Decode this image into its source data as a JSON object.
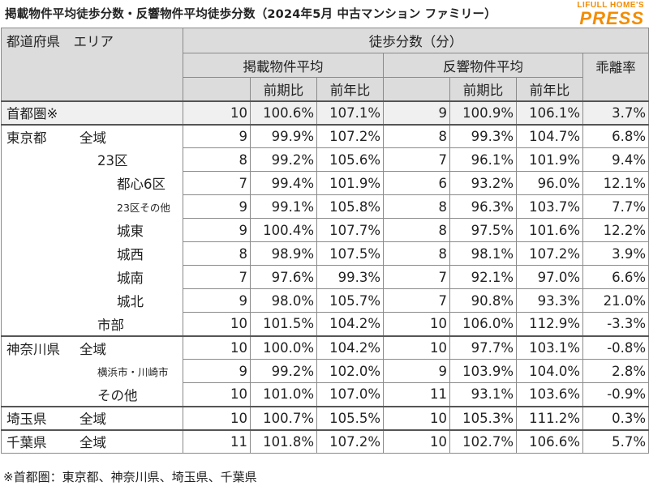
{
  "title": "掲載物件平均徒歩分数・反響物件平均徒歩分数（2024年5月 中古マンション ファミリー）",
  "logo": {
    "top": "LIFULL HOME'S",
    "main": "PRESS",
    "color": "#f28c00"
  },
  "header": {
    "region": "都道府県　エリア",
    "walk_minutes": "徒歩分数（分）",
    "listed": "掲載物件平均",
    "response": "反響物件平均",
    "divergence": "乖離率",
    "mom": "前期比",
    "yoy": "前年比"
  },
  "rows": [
    {
      "pref": "首都圏※",
      "area": "",
      "l_min": "10",
      "l_mom": "100.6%",
      "l_yoy": "107.1%",
      "r_min": "9",
      "r_mom": "100.9%",
      "r_yoy": "106.1%",
      "div": "3.7%"
    },
    {
      "pref": "東京都",
      "area": "全域",
      "l_min": "9",
      "l_mom": "99.9%",
      "l_yoy": "107.2%",
      "r_min": "8",
      "r_mom": "99.3%",
      "r_yoy": "104.7%",
      "div": "6.8%"
    },
    {
      "pref": "",
      "area": "23区",
      "l_min": "8",
      "l_mom": "99.2%",
      "l_yoy": "105.6%",
      "r_min": "7",
      "r_mom": "96.1%",
      "r_yoy": "101.9%",
      "div": "9.4%"
    },
    {
      "pref": "",
      "area": "都心6区",
      "l_min": "7",
      "l_mom": "99.4%",
      "l_yoy": "101.9%",
      "r_min": "6",
      "r_mom": "93.2%",
      "r_yoy": "96.0%",
      "div": "12.1%"
    },
    {
      "pref": "",
      "area": "23区その他",
      "l_min": "9",
      "l_mom": "99.1%",
      "l_yoy": "105.8%",
      "r_min": "8",
      "r_mom": "96.3%",
      "r_yoy": "103.7%",
      "div": "7.7%"
    },
    {
      "pref": "",
      "area": "城東",
      "l_min": "9",
      "l_mom": "100.4%",
      "l_yoy": "107.7%",
      "r_min": "8",
      "r_mom": "97.5%",
      "r_yoy": "101.6%",
      "div": "12.2%"
    },
    {
      "pref": "",
      "area": "城西",
      "l_min": "8",
      "l_mom": "98.9%",
      "l_yoy": "107.5%",
      "r_min": "8",
      "r_mom": "98.1%",
      "r_yoy": "107.2%",
      "div": "3.9%"
    },
    {
      "pref": "",
      "area": "城南",
      "l_min": "7",
      "l_mom": "97.6%",
      "l_yoy": "99.3%",
      "r_min": "7",
      "r_mom": "92.1%",
      "r_yoy": "97.0%",
      "div": "6.6%"
    },
    {
      "pref": "",
      "area": "城北",
      "l_min": "9",
      "l_mom": "98.0%",
      "l_yoy": "105.7%",
      "r_min": "7",
      "r_mom": "90.8%",
      "r_yoy": "93.3%",
      "div": "21.0%"
    },
    {
      "pref": "",
      "area": "市部",
      "l_min": "10",
      "l_mom": "101.5%",
      "l_yoy": "104.2%",
      "r_min": "10",
      "r_mom": "106.0%",
      "r_yoy": "112.9%",
      "div": "-3.3%"
    },
    {
      "pref": "神奈川県",
      "area": "全域",
      "l_min": "10",
      "l_mom": "100.0%",
      "l_yoy": "104.2%",
      "r_min": "10",
      "r_mom": "97.7%",
      "r_yoy": "103.1%",
      "div": "-0.8%"
    },
    {
      "pref": "",
      "area": "横浜市・川崎市",
      "l_min": "9",
      "l_mom": "99.2%",
      "l_yoy": "102.0%",
      "r_min": "9",
      "r_mom": "103.9%",
      "r_yoy": "104.0%",
      "div": "2.8%"
    },
    {
      "pref": "",
      "area": "その他",
      "l_min": "10",
      "l_mom": "101.0%",
      "l_yoy": "107.0%",
      "r_min": "11",
      "r_mom": "93.1%",
      "r_yoy": "103.6%",
      "div": "-0.9%"
    },
    {
      "pref": "埼玉県",
      "area": "全域",
      "l_min": "10",
      "l_mom": "100.7%",
      "l_yoy": "105.5%",
      "r_min": "10",
      "r_mom": "105.3%",
      "r_yoy": "111.2%",
      "div": "0.3%"
    },
    {
      "pref": "千葉県",
      "area": "全域",
      "l_min": "11",
      "l_mom": "101.8%",
      "l_yoy": "107.2%",
      "r_min": "10",
      "r_mom": "102.7%",
      "r_yoy": "106.6%",
      "div": "5.7%"
    }
  ],
  "footnote": "※首都圏：東京都、神奈川県、埼玉県、千葉県"
}
